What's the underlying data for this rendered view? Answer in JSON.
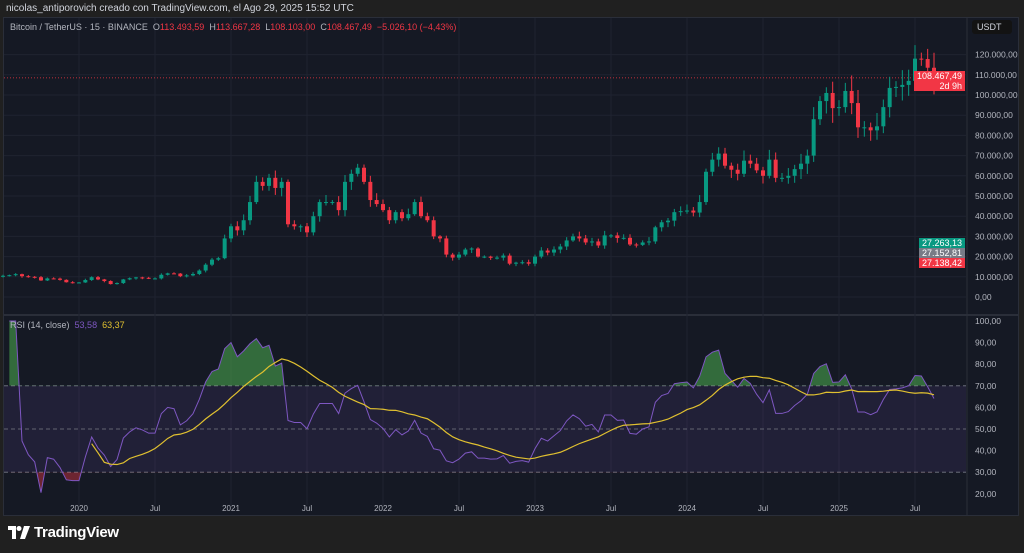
{
  "caption": "nicolas_antiporovich creado con TradingView.com, el Ago 29, 2025 15:52 UTC",
  "legend": {
    "symbol": "Bitcoin / TetherUS · 15 · BINANCE",
    "open_label": "O",
    "open": "113.493,59",
    "high_label": "H",
    "high": "113.667,28",
    "low_label": "L",
    "low": "108.103,00",
    "close_label": "C",
    "close": "108.467,49",
    "change": "−5.026,10 (−4,43%)"
  },
  "currency_button": "USDT",
  "price_labels": {
    "last_price": "108.467,49",
    "countdown": "2d 9h",
    "green": "27.263,13",
    "grey": "27.152,81",
    "red": "27.138,42"
  },
  "rsi_legend": {
    "name": "RSI (14, close)",
    "rsi": "53,58",
    "ma": "63,37"
  },
  "logo": {
    "text": "TradingView"
  },
  "colors": {
    "up": "#089981",
    "down": "#f23645",
    "rsi": "#7e57c2",
    "rsi_ma": "#e0c030",
    "background": "#151924"
  },
  "chart_data": [
    {
      "type": "candlestick",
      "title": "Bitcoin / TetherUS · 15 · BINANCE",
      "interval": "15 days",
      "start": "2019-07",
      "x_tick_labels": [
        "2020",
        "Jul",
        "2021",
        "Jul",
        "2022",
        "Jul",
        "2023",
        "Jul",
        "2024",
        "Jul",
        "2025",
        "Jul"
      ],
      "y_tick_labels": [
        "0,00",
        "10.000,00",
        "20.000,00",
        "30.000,00",
        "40.000,00",
        "50.000,00",
        "60.000,00",
        "70.000,00",
        "80.000,00",
        "90.000,00",
        "100.000,00",
        "110.000,00",
        "120.000,00"
      ],
      "ylim": [
        0,
        125000
      ],
      "last_price": 108467.49,
      "closes": [
        10500,
        10800,
        11300,
        10300,
        10000,
        9800,
        8200,
        9200,
        9100,
        8500,
        7300,
        7200,
        7200,
        8400,
        9800,
        8700,
        7900,
        6400,
        6900,
        8700,
        9300,
        9700,
        9500,
        9200,
        9200,
        11000,
        11700,
        11600,
        10300,
        10700,
        11400,
        13100,
        16000,
        18500,
        19200,
        29000,
        35000,
        33000,
        38000,
        47000,
        57000,
        55000,
        59000,
        54000,
        57000,
        36000,
        35000,
        35000,
        32000,
        40000,
        47000,
        47000,
        47000,
        43000,
        57000,
        61000,
        64000,
        57000,
        48000,
        46000,
        43000,
        38000,
        42000,
        39000,
        41000,
        47000,
        40000,
        38000,
        30000,
        29000,
        21000,
        19500,
        21000,
        23500,
        24000,
        20000,
        20000,
        19400,
        19500,
        20500,
        16500,
        17000,
        17200,
        16500,
        20000,
        23000,
        22000,
        23500,
        25000,
        28000,
        30000,
        29000,
        27000,
        27500,
        25500,
        30500,
        30500,
        29200,
        29300,
        26000,
        25800,
        27000,
        27500,
        34500,
        37000,
        37800,
        42000,
        42500,
        42800,
        41800,
        47000,
        62000,
        68000,
        71000,
        65000,
        63000,
        61000,
        67500,
        66000,
        62700,
        60000,
        68000,
        59000,
        59000,
        60000,
        63300,
        66000,
        70000,
        88000,
        97000,
        101000,
        93500,
        94000,
        102000,
        96000,
        84000,
        84000,
        82500,
        84500,
        94000,
        103500,
        104000,
        105000,
        107000,
        118000,
        117800,
        113500,
        108467
      ]
    },
    {
      "type": "line",
      "title": "RSI (14, close)",
      "series": [
        {
          "name": "RSI",
          "last": 53.58
        },
        {
          "name": "RSI-based MA",
          "last": 63.37
        }
      ],
      "y_tick_labels": [
        "20,00",
        "30,00",
        "40,00",
        "50,00",
        "60,00",
        "70,00",
        "80,00",
        "90,00",
        "100,00"
      ],
      "ylim": [
        20,
        100
      ],
      "bands": [
        30,
        50,
        70
      ]
    }
  ]
}
